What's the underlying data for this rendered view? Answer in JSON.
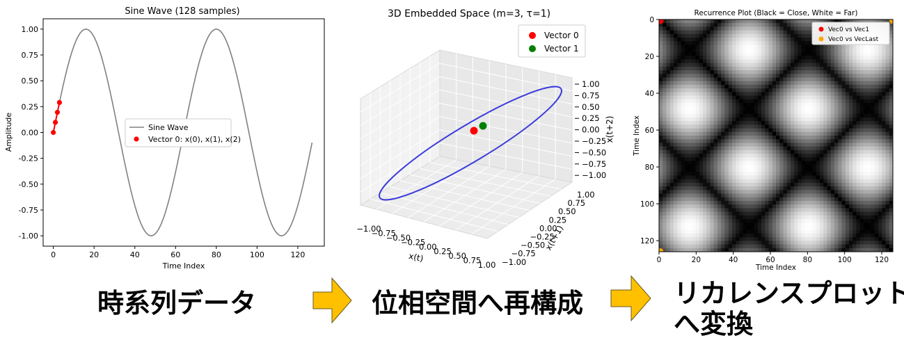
{
  "captions": {
    "left": "時系列データ",
    "middle": "位相空間へ再構成",
    "right_line1": "リカレンスプロット",
    "right_line2": "へ変換"
  },
  "colors": {
    "sine_line": "#808080",
    "marker_red": "#ff0000",
    "marker_green": "#008000",
    "marker_orange": "#ffa500",
    "ellipse": "#3b3bdc",
    "arrow_fill": "#ffc000",
    "arrow_stroke": "#6a5a1c"
  },
  "chart_data": [
    {
      "type": "line",
      "title": "Sine Wave (128 samples)",
      "xlabel": "Time Index",
      "ylabel": "Amplitude",
      "xlim": [
        -5,
        133
      ],
      "ylim": [
        -1.1,
        1.1
      ],
      "xticks": [
        "0",
        "20",
        "40",
        "60",
        "80",
        "100",
        "120"
      ],
      "yticks": [
        "-1.00",
        "-0.75",
        "-0.50",
        "-0.25",
        "0.00",
        "0.25",
        "0.50",
        "0.75",
        "1.00"
      ],
      "series": [
        {
          "name": "Sine Wave",
          "n_samples": 128,
          "periods": 2
        },
        {
          "name": "Vector 0: x(0), x(1), x(2)",
          "x": [
            0,
            1,
            2,
            3
          ],
          "y": [
            0.0,
            0.098,
            0.195,
            0.29
          ]
        }
      ],
      "legend": "center-right"
    },
    {
      "type": "scatter",
      "title": "3D Embedded Space (m=3, τ=1)",
      "xlabel": "x(t)",
      "ylabel": "x(t+1)",
      "zlabel": "x(t+2)",
      "xticks": [
        "−1.00",
        "−0.75",
        "−0.50",
        "−0.25",
        "0.00",
        "0.25",
        "0.50",
        "0.75",
        "1.00"
      ],
      "yticks": [
        "1.00",
        "0.75",
        "0.50",
        "0.25",
        "0.00",
        "−0.25",
        "−0.50",
        "−0.75",
        "−1.00"
      ],
      "zticks": [
        "1.00",
        "0.75",
        "0.50",
        "0.25",
        "0.00",
        "−0.25",
        "−0.50",
        "−0.75",
        "−1.00"
      ],
      "series": [
        {
          "name": "Vector 0"
        },
        {
          "name": "Vector 1"
        }
      ],
      "legend": "top-right"
    },
    {
      "type": "heatmap",
      "title": "Recurrence Plot (Black = Close, White = Far)",
      "xlabel": "Time Index",
      "ylabel": "Time Index",
      "size": 126,
      "xticks": [
        "0",
        "20",
        "40",
        "60",
        "80",
        "100",
        "120"
      ],
      "yticks": [
        "0",
        "20",
        "40",
        "60",
        "80",
        "100",
        "120"
      ],
      "series": [
        {
          "name": "Vec0 vs Vec1",
          "x": 1,
          "y": 0
        },
        {
          "name": "Vec0 vs VecLast",
          "x": 125,
          "y": 0
        }
      ],
      "legend": "top-right"
    }
  ]
}
